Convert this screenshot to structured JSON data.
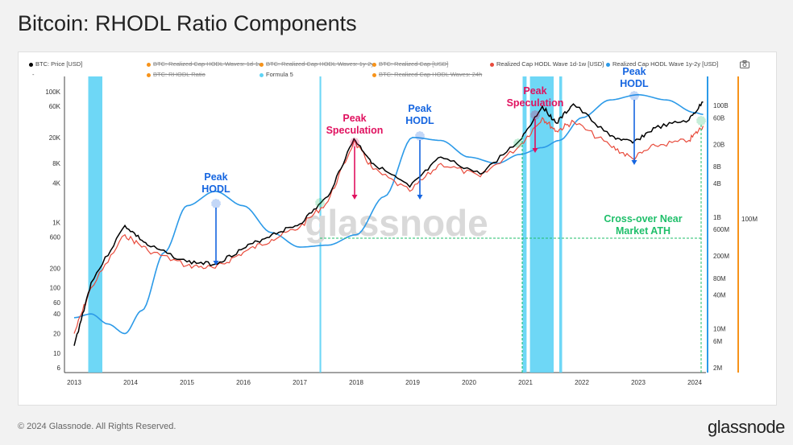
{
  "title": "Bitcoin: RHODL Ratio Components",
  "legend": [
    {
      "label": "BTC: Price [USD]",
      "color": "#000000",
      "struck": false
    },
    {
      "label": "BTC: Realized Cap HODL Waves: 1d-1w",
      "color": "#f7931a",
      "struck": true
    },
    {
      "label": "BTC: Realized Cap HODL Waves: 1y-2y",
      "color": "#f7931a",
      "struck": true
    },
    {
      "label": "BTC: Realized Cap [USD]",
      "color": "#f7931a",
      "struck": true
    },
    {
      "label": "Realized Cap HODL Wave 1d-1w [USD]",
      "color": "#e84b3c",
      "struck": false
    },
    {
      "label": "Realized Cap HODL Wave 1y-2y [USD]",
      "color": "#2c9ae8",
      "struck": false
    },
    {
      "label": "BTC: RHODL Ratio",
      "color": "#f7931a",
      "struck": true
    },
    {
      "label": "Formula 5",
      "color": "#5ed3f5",
      "struck": false
    },
    {
      "label": "BTC: Realized Cap HODL Waves: 24h",
      "color": "#f7931a",
      "struck": true
    }
  ],
  "legend_dash": "-",
  "watermark": "glassnode",
  "annotations": {
    "peak_hodl": "Peak HODL",
    "peak_speculation": "Peak Speculation",
    "crossover": "Cross-over Near Market ATH"
  },
  "footer": "© 2024 Glassnode. All Rights Reserved.",
  "brand": "glassnode",
  "colors": {
    "price": "#000000",
    "wave_1d1w": "#e84b3c",
    "wave_1y2y": "#2c9ae8",
    "formula5": "#5ed3f5",
    "orange_axis": "#f7931a",
    "annotation_blue": "#1565e0",
    "annotation_red": "#e0115f",
    "annotation_green": "#1fbf6a"
  },
  "chart_data": {
    "type": "line",
    "log_scale": true,
    "x_ticks": [
      "2013",
      "2014",
      "2015",
      "2016",
      "2017",
      "2018",
      "2019",
      "2020",
      "2021",
      "2022",
      "2023",
      "2024"
    ],
    "y_left_ticks": [
      "6",
      "10",
      "20",
      "40",
      "60",
      "100",
      "200",
      "600",
      "1K",
      "4K",
      "8K",
      "20K",
      "60K",
      "100K"
    ],
    "y_right_ticks": [
      "2M",
      "6M",
      "10M",
      "40M",
      "80M",
      "200M",
      "600M",
      "1B",
      "4B",
      "8B",
      "20B",
      "60B",
      "100B"
    ],
    "y_far_right_ticks": [
      "100M"
    ],
    "series": [
      {
        "name": "BTC: Price [USD]",
        "x": [
          2013.0,
          2013.3,
          2013.9,
          2014.3,
          2015.0,
          2015.5,
          2016.0,
          2016.5,
          2017.0,
          2017.5,
          2017.96,
          2018.3,
          2018.95,
          2019.5,
          2020.2,
          2020.9,
          2021.3,
          2021.55,
          2021.85,
          2022.5,
          2022.9,
          2023.3,
          2023.9,
          2024.15
        ],
        "y": [
          13,
          120,
          900,
          450,
          250,
          230,
          400,
          650,
          950,
          2500,
          19000,
          8000,
          3500,
          10000,
          5500,
          18000,
          60000,
          33000,
          65000,
          21000,
          16500,
          28000,
          37000,
          70000
        ]
      },
      {
        "name": "Realized Cap HODL Wave 1d-1w [USD]",
        "x": [
          2013.0,
          2013.3,
          2013.9,
          2014.3,
          2015.0,
          2015.5,
          2016.0,
          2016.5,
          2017.0,
          2017.5,
          2017.96,
          2018.3,
          2018.95,
          2019.5,
          2020.2,
          2020.9,
          2021.3,
          2021.55,
          2021.85,
          2022.5,
          2022.9,
          2023.3,
          2023.9,
          2024.15
        ],
        "y": [
          20,
          100,
          650,
          380,
          220,
          200,
          350,
          550,
          850,
          2100,
          17500,
          6500,
          3000,
          8000,
          5000,
          15000,
          40000,
          25000,
          35000,
          15000,
          9500,
          15000,
          18000,
          30000
        ]
      },
      {
        "name": "Realized Cap HODL Wave 1y-2y [USD]",
        "x": [
          2013.0,
          2013.3,
          2013.6,
          2013.9,
          2014.2,
          2014.6,
          2015.0,
          2015.5,
          2016.0,
          2016.5,
          2017.0,
          2017.5,
          2018.0,
          2018.5,
          2019.0,
          2019.5,
          2020.0,
          2020.5,
          2020.9,
          2021.3,
          2021.6,
          2022.0,
          2022.5,
          2023.0,
          2023.5,
          2024.0,
          2024.15
        ],
        "y": [
          35,
          40,
          28,
          20,
          45,
          350,
          1800,
          3000,
          1800,
          700,
          420,
          450,
          650,
          2500,
          20000,
          18000,
          10000,
          8000,
          11000,
          14000,
          18000,
          40000,
          75000,
          90000,
          75000,
          48000,
          45000
        ]
      }
    ],
    "formula5_bands_x": [
      2013.25,
      2013.5,
      2017.35,
      2017.38,
      2020.95,
      2021.02,
      2021.08,
      2021.5,
      2021.6,
      2021.65
    ]
  }
}
